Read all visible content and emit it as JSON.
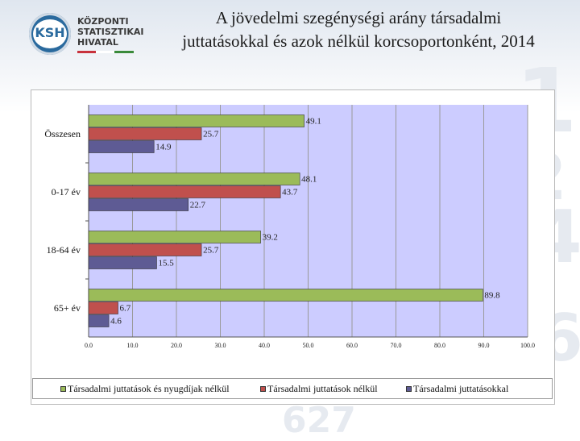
{
  "header": {
    "logo_abbr": "KSH",
    "logo_lines": [
      "KÖZPONTI",
      "STATISZTIKAI",
      "HIVATAL"
    ],
    "title_line1": "A jövedelmi szegénységi arány társadalmi",
    "title_line2": "juttatásokkal és azok nélkül korcsoportonként, 2014"
  },
  "colors": {
    "series_green": "#9bbb59",
    "series_red": "#c0504d",
    "series_blue": "#5e5b94",
    "plot_bg": "#ccccff",
    "grid": "#9a9a9a"
  },
  "chart_data": {
    "type": "bar",
    "orientation": "horizontal",
    "title": "A jövedelmi szegénységi arány társadalmi juttatásokkal és azok nélkül korcsoportonként, 2014",
    "categories": [
      "Összesen",
      "0-17 év",
      "18-64 év",
      "65+ év"
    ],
    "series": [
      {
        "name": "Társadalmi juttatások és nyugdíjak nélkül",
        "color": "#9bbb59",
        "values": [
          49.1,
          48.1,
          39.2,
          89.8
        ]
      },
      {
        "name": "Társadalmi juttatások nélkül",
        "color": "#c0504d",
        "values": [
          25.7,
          43.7,
          25.7,
          6.7
        ]
      },
      {
        "name": "Társadalmi juttatásokkal",
        "color": "#5e5b94",
        "values": [
          14.9,
          22.7,
          15.5,
          4.6
        ]
      }
    ],
    "xlim": [
      0,
      100
    ],
    "xticks": [
      0,
      10,
      20,
      30,
      40,
      50,
      60,
      70,
      80,
      90,
      100
    ],
    "xtick_labels": [
      "0.0",
      "10.0",
      "20.0",
      "30.0",
      "40.0",
      "50.0",
      "60.0",
      "70.0",
      "80.0",
      "90.0",
      "100.0"
    ],
    "grid": true,
    "legend_position": "bottom"
  }
}
